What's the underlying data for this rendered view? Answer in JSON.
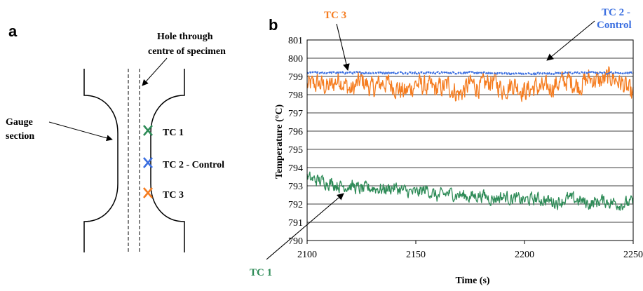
{
  "panel_a": {
    "label": "a",
    "hole_label": [
      "Hole through",
      "centre of specimen"
    ],
    "gauge_label": [
      "Gauge",
      "section"
    ],
    "thermocouples": [
      {
        "name": "TC 1",
        "color": "#2e8b57",
        "marker": "x-mark-icon"
      },
      {
        "name": "TC 2 - Control",
        "color": "#3b6fe0",
        "marker": "x-mark-icon"
      },
      {
        "name": "TC 3",
        "color": "#f57c1f",
        "marker": "x-mark-icon"
      }
    ]
  },
  "panel_b": {
    "label": "b",
    "annotations": {
      "tc3": "TC 3",
      "tc2": [
        "TC 2 -",
        "Control"
      ],
      "tc1": "TC 1"
    }
  },
  "chart_data": {
    "type": "line",
    "xlabel": "Time (s)",
    "ylabel": "Temperature (°C)",
    "xlim": [
      2100,
      2250
    ],
    "ylim": [
      790,
      801
    ],
    "xticks": [
      2100,
      2150,
      2200,
      2250
    ],
    "yticks": [
      790,
      791,
      792,
      793,
      794,
      795,
      796,
      797,
      798,
      799,
      800,
      801
    ],
    "grid": "horizontal",
    "series": [
      {
        "name": "TC 3",
        "color": "#f57c1f",
        "x": [
          2100,
          2105,
          2110,
          2115,
          2120,
          2125,
          2130,
          2135,
          2140,
          2145,
          2150,
          2155,
          2160,
          2165,
          2170,
          2175,
          2180,
          2185,
          2190,
          2195,
          2200,
          2205,
          2210,
          2215,
          2220,
          2225,
          2230,
          2235,
          2240,
          2245,
          2250
        ],
        "y": [
          798.5,
          798.6,
          798.4,
          798.9,
          798.2,
          798.8,
          798.3,
          798.7,
          798.5,
          798.1,
          798.6,
          798.4,
          798.3,
          798.5,
          798.0,
          798.6,
          798.4,
          798.8,
          798.3,
          798.6,
          798.2,
          798.4,
          798.3,
          798.6,
          798.8,
          798.5,
          798.9,
          798.7,
          799.0,
          798.6,
          797.9
        ],
        "amplitude": 0.9
      },
      {
        "name": "TC 2 - Control",
        "color": "#3b6fe0",
        "x": [
          2100,
          2125,
          2150,
          2175,
          2200,
          2225,
          2250
        ],
        "y": [
          799.2,
          799.2,
          799.2,
          799.2,
          799.15,
          799.2,
          799.2
        ],
        "amplitude": 0.08
      },
      {
        "name": "TC 1",
        "color": "#2e8b57",
        "x": [
          2100,
          2105,
          2110,
          2115,
          2120,
          2125,
          2130,
          2135,
          2140,
          2145,
          2150,
          2155,
          2160,
          2165,
          2170,
          2175,
          2180,
          2185,
          2190,
          2195,
          2200,
          2205,
          2210,
          2215,
          2220,
          2225,
          2230,
          2235,
          2240,
          2245,
          2250
        ],
        "y": [
          793.4,
          793.3,
          793.2,
          793.0,
          793.0,
          792.8,
          792.9,
          792.8,
          792.9,
          792.7,
          792.6,
          792.8,
          792.4,
          792.6,
          792.5,
          792.4,
          792.5,
          792.3,
          792.4,
          792.3,
          792.2,
          792.3,
          792.2,
          792.1,
          792.3,
          792.2,
          792.0,
          792.2,
          792.1,
          792.0,
          792.1
        ],
        "amplitude": 0.55
      }
    ]
  }
}
